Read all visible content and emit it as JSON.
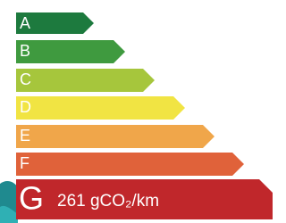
{
  "classes": [
    {
      "label": "A"
    },
    {
      "label": "B"
    },
    {
      "label": "C"
    },
    {
      "label": "D"
    },
    {
      "label": "E"
    },
    {
      "label": "F"
    },
    {
      "label": "G",
      "value": "261 gCO₂/km"
    }
  ]
}
